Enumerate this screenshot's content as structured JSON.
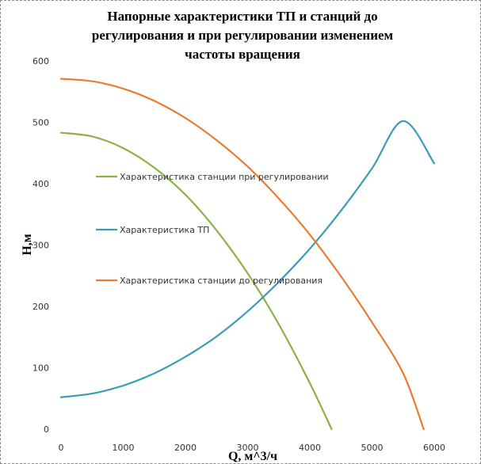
{
  "chart_data": {
    "type": "line",
    "title_lines": [
      "Напорные характеристики ТП и станций до",
      "регулирования и при регулировании изменением",
      "частоты вращения"
    ],
    "xlabel": "Q, м^3/ч",
    "ylabel": "H,м",
    "xlim": [
      0,
      6000
    ],
    "ylim": [
      0,
      600
    ],
    "x_ticks": [
      "0",
      "1000",
      "2000",
      "3000",
      "4000",
      "5000",
      "6000"
    ],
    "y_ticks": [
      "0",
      "100",
      "200",
      "300",
      "400",
      "500",
      "600"
    ],
    "grid": false,
    "legend_position": "inside-left",
    "series": [
      {
        "name": "Характеристика станции при регулировании",
        "color": "#8db146",
        "x": [
          0,
          500,
          1000,
          1500,
          2000,
          2500,
          3000,
          3500,
          4000,
          4350
        ],
        "y": [
          483,
          477,
          458,
          426,
          382,
          324,
          254,
          171,
          75,
          0
        ]
      },
      {
        "name": "Характеристика ТП",
        "color": "#3b9bb8",
        "x": [
          0,
          500,
          1000,
          1500,
          2000,
          2500,
          3000,
          3500,
          4000,
          4500,
          5000,
          5500,
          6000
        ],
        "y": [
          52,
          58,
          71,
          91,
          118,
          151,
          192,
          240,
          294,
          356,
          425,
          502,
          433
        ]
      },
      {
        "name": "Характеристика станции до регулирования",
        "color": "#ec7b30",
        "x": [
          0,
          500,
          1000,
          1500,
          2000,
          2500,
          3000,
          3500,
          4000,
          4500,
          5000,
          5500,
          5830
        ],
        "y": [
          571,
          567,
          555,
          535,
          507,
          471,
          428,
          376,
          317,
          249,
          174,
          91,
          0
        ]
      }
    ]
  }
}
